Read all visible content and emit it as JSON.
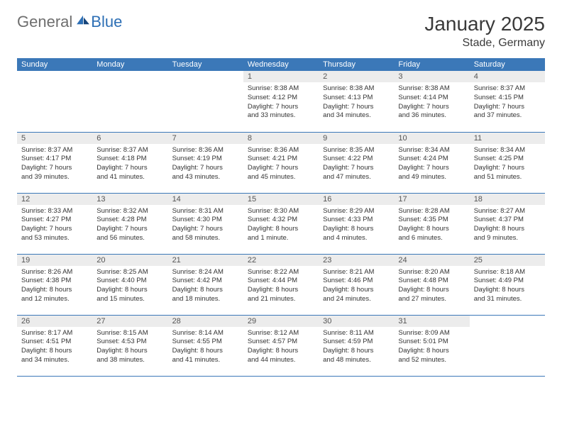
{
  "brand": {
    "part1": "General",
    "part2": "Blue"
  },
  "title": "January 2025",
  "location": "Stade, Germany",
  "colors": {
    "header_bg": "#3b78b8",
    "header_text": "#ffffff",
    "daynum_bg": "#ececec",
    "row_border": "#3b78b8",
    "logo_gray": "#6e6e6e",
    "logo_blue": "#2d6fb5"
  },
  "weekdays": [
    "Sunday",
    "Monday",
    "Tuesday",
    "Wednesday",
    "Thursday",
    "Friday",
    "Saturday"
  ],
  "weeks": [
    [
      {
        "empty": true
      },
      {
        "empty": true
      },
      {
        "empty": true
      },
      {
        "day": "1",
        "sunrise": "Sunrise: 8:38 AM",
        "sunset": "Sunset: 4:12 PM",
        "daylight1": "Daylight: 7 hours",
        "daylight2": "and 33 minutes."
      },
      {
        "day": "2",
        "sunrise": "Sunrise: 8:38 AM",
        "sunset": "Sunset: 4:13 PM",
        "daylight1": "Daylight: 7 hours",
        "daylight2": "and 34 minutes."
      },
      {
        "day": "3",
        "sunrise": "Sunrise: 8:38 AM",
        "sunset": "Sunset: 4:14 PM",
        "daylight1": "Daylight: 7 hours",
        "daylight2": "and 36 minutes."
      },
      {
        "day": "4",
        "sunrise": "Sunrise: 8:37 AM",
        "sunset": "Sunset: 4:15 PM",
        "daylight1": "Daylight: 7 hours",
        "daylight2": "and 37 minutes."
      }
    ],
    [
      {
        "day": "5",
        "sunrise": "Sunrise: 8:37 AM",
        "sunset": "Sunset: 4:17 PM",
        "daylight1": "Daylight: 7 hours",
        "daylight2": "and 39 minutes."
      },
      {
        "day": "6",
        "sunrise": "Sunrise: 8:37 AM",
        "sunset": "Sunset: 4:18 PM",
        "daylight1": "Daylight: 7 hours",
        "daylight2": "and 41 minutes."
      },
      {
        "day": "7",
        "sunrise": "Sunrise: 8:36 AM",
        "sunset": "Sunset: 4:19 PM",
        "daylight1": "Daylight: 7 hours",
        "daylight2": "and 43 minutes."
      },
      {
        "day": "8",
        "sunrise": "Sunrise: 8:36 AM",
        "sunset": "Sunset: 4:21 PM",
        "daylight1": "Daylight: 7 hours",
        "daylight2": "and 45 minutes."
      },
      {
        "day": "9",
        "sunrise": "Sunrise: 8:35 AM",
        "sunset": "Sunset: 4:22 PM",
        "daylight1": "Daylight: 7 hours",
        "daylight2": "and 47 minutes."
      },
      {
        "day": "10",
        "sunrise": "Sunrise: 8:34 AM",
        "sunset": "Sunset: 4:24 PM",
        "daylight1": "Daylight: 7 hours",
        "daylight2": "and 49 minutes."
      },
      {
        "day": "11",
        "sunrise": "Sunrise: 8:34 AM",
        "sunset": "Sunset: 4:25 PM",
        "daylight1": "Daylight: 7 hours",
        "daylight2": "and 51 minutes."
      }
    ],
    [
      {
        "day": "12",
        "sunrise": "Sunrise: 8:33 AM",
        "sunset": "Sunset: 4:27 PM",
        "daylight1": "Daylight: 7 hours",
        "daylight2": "and 53 minutes."
      },
      {
        "day": "13",
        "sunrise": "Sunrise: 8:32 AM",
        "sunset": "Sunset: 4:28 PM",
        "daylight1": "Daylight: 7 hours",
        "daylight2": "and 56 minutes."
      },
      {
        "day": "14",
        "sunrise": "Sunrise: 8:31 AM",
        "sunset": "Sunset: 4:30 PM",
        "daylight1": "Daylight: 7 hours",
        "daylight2": "and 58 minutes."
      },
      {
        "day": "15",
        "sunrise": "Sunrise: 8:30 AM",
        "sunset": "Sunset: 4:32 PM",
        "daylight1": "Daylight: 8 hours",
        "daylight2": "and 1 minute."
      },
      {
        "day": "16",
        "sunrise": "Sunrise: 8:29 AM",
        "sunset": "Sunset: 4:33 PM",
        "daylight1": "Daylight: 8 hours",
        "daylight2": "and 4 minutes."
      },
      {
        "day": "17",
        "sunrise": "Sunrise: 8:28 AM",
        "sunset": "Sunset: 4:35 PM",
        "daylight1": "Daylight: 8 hours",
        "daylight2": "and 6 minutes."
      },
      {
        "day": "18",
        "sunrise": "Sunrise: 8:27 AM",
        "sunset": "Sunset: 4:37 PM",
        "daylight1": "Daylight: 8 hours",
        "daylight2": "and 9 minutes."
      }
    ],
    [
      {
        "day": "19",
        "sunrise": "Sunrise: 8:26 AM",
        "sunset": "Sunset: 4:38 PM",
        "daylight1": "Daylight: 8 hours",
        "daylight2": "and 12 minutes."
      },
      {
        "day": "20",
        "sunrise": "Sunrise: 8:25 AM",
        "sunset": "Sunset: 4:40 PM",
        "daylight1": "Daylight: 8 hours",
        "daylight2": "and 15 minutes."
      },
      {
        "day": "21",
        "sunrise": "Sunrise: 8:24 AM",
        "sunset": "Sunset: 4:42 PM",
        "daylight1": "Daylight: 8 hours",
        "daylight2": "and 18 minutes."
      },
      {
        "day": "22",
        "sunrise": "Sunrise: 8:22 AM",
        "sunset": "Sunset: 4:44 PM",
        "daylight1": "Daylight: 8 hours",
        "daylight2": "and 21 minutes."
      },
      {
        "day": "23",
        "sunrise": "Sunrise: 8:21 AM",
        "sunset": "Sunset: 4:46 PM",
        "daylight1": "Daylight: 8 hours",
        "daylight2": "and 24 minutes."
      },
      {
        "day": "24",
        "sunrise": "Sunrise: 8:20 AM",
        "sunset": "Sunset: 4:48 PM",
        "daylight1": "Daylight: 8 hours",
        "daylight2": "and 27 minutes."
      },
      {
        "day": "25",
        "sunrise": "Sunrise: 8:18 AM",
        "sunset": "Sunset: 4:49 PM",
        "daylight1": "Daylight: 8 hours",
        "daylight2": "and 31 minutes."
      }
    ],
    [
      {
        "day": "26",
        "sunrise": "Sunrise: 8:17 AM",
        "sunset": "Sunset: 4:51 PM",
        "daylight1": "Daylight: 8 hours",
        "daylight2": "and 34 minutes."
      },
      {
        "day": "27",
        "sunrise": "Sunrise: 8:15 AM",
        "sunset": "Sunset: 4:53 PM",
        "daylight1": "Daylight: 8 hours",
        "daylight2": "and 38 minutes."
      },
      {
        "day": "28",
        "sunrise": "Sunrise: 8:14 AM",
        "sunset": "Sunset: 4:55 PM",
        "daylight1": "Daylight: 8 hours",
        "daylight2": "and 41 minutes."
      },
      {
        "day": "29",
        "sunrise": "Sunrise: 8:12 AM",
        "sunset": "Sunset: 4:57 PM",
        "daylight1": "Daylight: 8 hours",
        "daylight2": "and 44 minutes."
      },
      {
        "day": "30",
        "sunrise": "Sunrise: 8:11 AM",
        "sunset": "Sunset: 4:59 PM",
        "daylight1": "Daylight: 8 hours",
        "daylight2": "and 48 minutes."
      },
      {
        "day": "31",
        "sunrise": "Sunrise: 8:09 AM",
        "sunset": "Sunset: 5:01 PM",
        "daylight1": "Daylight: 8 hours",
        "daylight2": "and 52 minutes."
      },
      {
        "empty": true
      }
    ]
  ]
}
